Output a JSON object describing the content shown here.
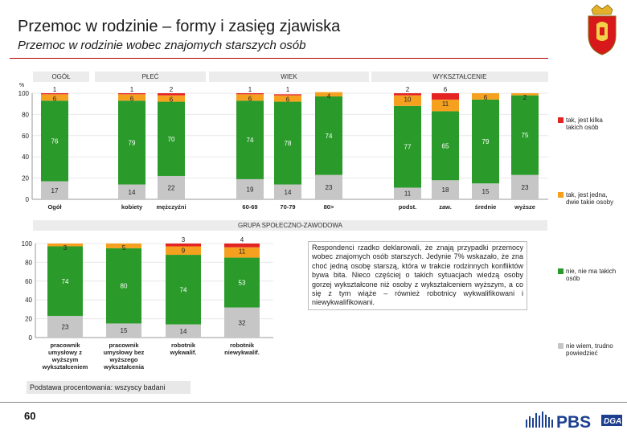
{
  "header": {
    "title": "Przemoc w rodzinie – formy i zasięg zjawiska",
    "subtitle": "Przemoc w rodzinie wobec znajomych starszych osób"
  },
  "colors": {
    "many": "#e42323",
    "one_or_two": "#f5a11f",
    "none": "#2a9b2a",
    "dont_know": "#c6c6c6",
    "title_rule": "#b00000"
  },
  "legend": [
    {
      "label": "tak, jest kilka takich osób",
      "color": "#e42323"
    },
    {
      "label": "tak, jest jedna, dwie takie osoby",
      "color": "#f5a11f"
    },
    {
      "label": "nie, nie ma takich osób",
      "color": "#2a9b2a"
    },
    {
      "label": "nie wiem, trudno powiedzieć",
      "color": "#c6c6c6"
    }
  ],
  "top_groups": [
    {
      "label": "OGÓŁ"
    },
    {
      "label": "PŁEĆ"
    },
    {
      "label": "WIEK"
    },
    {
      "label": "WYKSZTAŁCENIE"
    }
  ],
  "bottom_group": {
    "label": "GRUPA SPOŁECZNO-ZAWODOWA"
  },
  "chart_data": [
    {
      "type": "bar",
      "stacked": true,
      "ylim": [
        0,
        100
      ],
      "yticks": [
        "0",
        "20",
        "40",
        "60",
        "80",
        "100"
      ],
      "ylabel": "%",
      "categories": [
        "Ogół",
        "kobiety",
        "mężczyźni",
        "60-69",
        "70-79",
        "80>",
        "podst.",
        "zaw.",
        "średnie",
        "wyższe"
      ],
      "series": [
        {
          "name": "nie wiem, trudno powiedzieć",
          "values": [
            17,
            14,
            22,
            19,
            14,
            23,
            11,
            18,
            15,
            23
          ]
        },
        {
          "name": "nie, nie ma takich osób",
          "values": [
            76,
            79,
            70,
            74,
            78,
            74,
            77,
            65,
            79,
            75
          ]
        },
        {
          "name": "tak, jest jedna, dwie takie osoby",
          "values": [
            6,
            6,
            6,
            6,
            6,
            4,
            10,
            11,
            6,
            2
          ]
        },
        {
          "name": "tak, jest kilka takich osób",
          "values": [
            1,
            1,
            2,
            1,
            1,
            0,
            2,
            6,
            0,
            0
          ]
        }
      ],
      "labels": {
        "dont_know": [
          "17",
          "14",
          "22",
          "19",
          "14",
          "23",
          "11",
          "18",
          "15",
          "23"
        ],
        "none": [
          "76",
          "79",
          "70",
          "74",
          "78",
          "74",
          "77",
          "65",
          "79",
          "75"
        ],
        "one_or_two": [
          "6",
          "6",
          "6",
          "6",
          "6",
          "4",
          "10",
          "11",
          "6",
          "2"
        ],
        "many": [
          "1",
          "1",
          "2",
          "1",
          "1",
          "",
          "2",
          "6",
          "",
          ""
        ]
      }
    },
    {
      "type": "bar",
      "stacked": true,
      "ylim": [
        0,
        100
      ],
      "yticks": [
        "0",
        "20",
        "40",
        "60",
        "80",
        "100"
      ],
      "categories": [
        "pracownik umysłowy z wyższym wykształceniem",
        "pracownik umysłowy bez wyższego wykształcenia",
        "robotnik wykwalif.",
        "robotnik niewykwalif."
      ],
      "series": [
        {
          "name": "nie wiem, trudno powiedzieć",
          "values": [
            23,
            15,
            14,
            32
          ]
        },
        {
          "name": "nie, nie ma takich osób",
          "values": [
            74,
            80,
            74,
            53
          ]
        },
        {
          "name": "tak, jest jedna, dwie takie osoby",
          "values": [
            3,
            5,
            9,
            11
          ]
        },
        {
          "name": "tak, jest kilka takich osób",
          "values": [
            0,
            0,
            3,
            4
          ]
        }
      ],
      "labels": {
        "dont_know": [
          "23",
          "15",
          "14",
          "32"
        ],
        "none": [
          "74",
          "80",
          "74",
          "53"
        ],
        "one_or_two": [
          "3",
          "5",
          "9",
          "11"
        ],
        "many": [
          "",
          "",
          "3",
          "4"
        ]
      }
    }
  ],
  "note": "Respondenci rzadko deklarowali, że znają przypadki przemocy wobec znajomych osób starszych. Jedynie 7% wskazało, że zna choć jedną osobę starszą, która w trakcie rodzinnych konfliktów bywa bita. Nieco częściej o takich sytuacjach wiedzą osoby gorzej wykształcone niż osoby z wykształceniem wyższym, a co się z tym wiąże – również robotnicy wykwalifikowani i niewykwalifikowani.",
  "basis": "Podstawa procentowania: wszyscy badani",
  "page_number": "60",
  "logo_text": "PBS",
  "logo_badge": "DGA"
}
